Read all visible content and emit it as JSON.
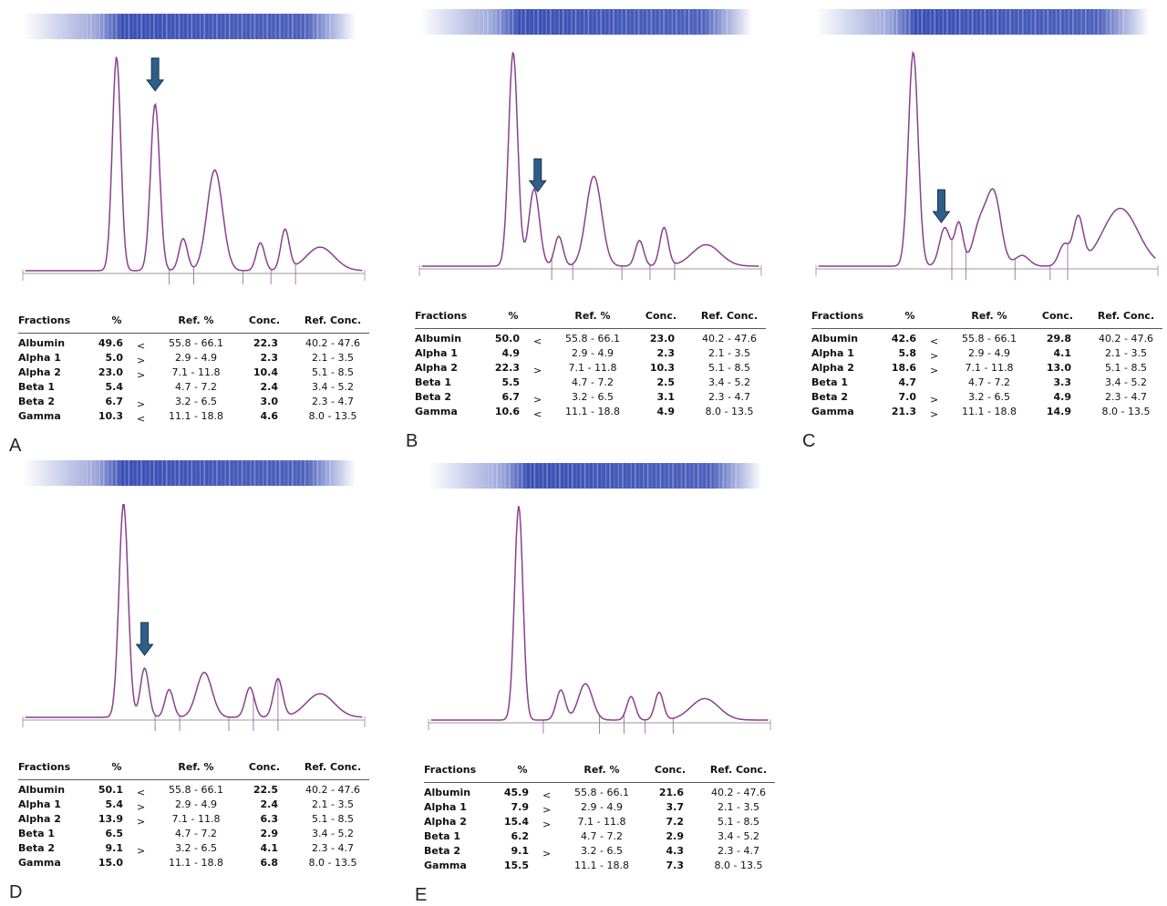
{
  "panels": [
    {
      "label": "A",
      "header": [
        "Fractions",
        "%",
        "Ref. %",
        "Conc.",
        "Ref. Conc."
      ],
      "rows": [
        {
          "name": "Albumin",
          "pct": "49.6",
          "flag": "<",
          "ref": "55.8 - 66.1",
          "conc": "22.3",
          "ref_conc": "40.2 - 47.6"
        },
        {
          "name": "Alpha 1",
          "pct": "5.0",
          "flag": ">",
          "ref": "2.9 - 4.9",
          "conc": "2.3",
          "ref_conc": "2.1 - 3.5"
        },
        {
          "name": "Alpha 2",
          "pct": "23.0",
          "flag": ">",
          "ref": "7.1 - 11.8",
          "conc": "10.4",
          "ref_conc": "5.1 - 8.5"
        },
        {
          "name": "Beta 1",
          "pct": "5.4",
          "ref": "4.7 - 7.2",
          "conc": "2.4",
          "ref_conc": "3.4 - 5.2"
        },
        {
          "name": "Beta 2",
          "pct": "6.7",
          "flag": ">",
          "ref": "3.2 - 6.5",
          "conc": "3.0",
          "ref_conc": "2.3 - 4.7"
        },
        {
          "name": "Gamma",
          "pct": "10.3",
          "flag": "<",
          "ref": "11.1 - 18.8",
          "conc": "4.6",
          "ref_conc": "8.0 - 13.5"
        }
      ]
    },
    {
      "label": "B",
      "header": [
        "Fractions",
        "%",
        "Ref. %",
        "Conc.",
        "Ref. Conc."
      ],
      "rows": [
        {
          "name": "Albumin",
          "pct": "50.0",
          "flag": "<",
          "ref": "55.8 - 66.1",
          "conc": "23.0",
          "ref_conc": "40.2 - 47.6"
        },
        {
          "name": "Alpha 1",
          "pct": "4.9",
          "ref": "2.9 - 4.9",
          "conc": "2.3",
          "ref_conc": "2.1 - 3.5"
        },
        {
          "name": "Alpha 2",
          "pct": "22.3",
          "flag": ">",
          "ref": "7.1 - 11.8",
          "conc": "10.3",
          "ref_conc": "5.1 - 8.5"
        },
        {
          "name": "Beta 1",
          "pct": "5.5",
          "ref": "4.7 - 7.2",
          "conc": "2.5",
          "ref_conc": "3.4 - 5.2"
        },
        {
          "name": "Beta 2",
          "pct": "6.7",
          "flag": ">",
          "ref": "3.2 - 6.5",
          "conc": "3.1",
          "ref_conc": "2.3 - 4.7"
        },
        {
          "name": "Gamma",
          "pct": "10.6",
          "flag": "<",
          "ref": "11.1 - 18.8",
          "conc": "4.9",
          "ref_conc": "8.0 - 13.5"
        }
      ]
    },
    {
      "label": "C",
      "header": [
        "Fractions",
        "%",
        "Ref. %",
        "Conc.",
        "Ref. Conc."
      ],
      "rows": [
        {
          "name": "Albumin",
          "pct": "42.6",
          "flag": "<",
          "ref": "55.8 - 66.1",
          "conc": "29.8",
          "ref_conc": "40.2 - 47.6"
        },
        {
          "name": "Alpha 1",
          "pct": "5.8",
          "flag": ">",
          "ref": "2.9 - 4.9",
          "conc": "4.1",
          "ref_conc": "2.1 - 3.5"
        },
        {
          "name": "Alpha 2",
          "pct": "18.6",
          "flag": ">",
          "ref": "7.1 - 11.8",
          "conc": "13.0",
          "ref_conc": "5.1 - 8.5"
        },
        {
          "name": "Beta 1",
          "pct": "4.7",
          "ref": "4.7 - 7.2",
          "conc": "3.3",
          "ref_conc": "3.4 - 5.2"
        },
        {
          "name": "Beta 2",
          "pct": "7.0",
          "flag": ">",
          "ref": "3.2 - 6.5",
          "conc": "4.9",
          "ref_conc": "2.3 - 4.7"
        },
        {
          "name": "Gamma",
          "pct": "21.3",
          "flag": ">",
          "ref": "11.1 - 18.8",
          "conc": "14.9",
          "ref_conc": "8.0 - 13.5"
        }
      ]
    },
    {
      "label": "D",
      "header": [
        "Fractions",
        "%",
        "Ref. %",
        "Conc.",
        "Ref. Conc."
      ],
      "rows": [
        {
          "name": "Albumin",
          "pct": "50.1",
          "flag": "<",
          "ref": "55.8 - 66.1",
          "conc": "22.5",
          "ref_conc": "40.2 - 47.6"
        },
        {
          "name": "Alpha 1",
          "pct": "5.4",
          "flag": ">",
          "ref": "2.9 - 4.9",
          "conc": "2.4",
          "ref_conc": "2.1 - 3.5"
        },
        {
          "name": "Alpha 2",
          "pct": "13.9",
          "flag": ">",
          "ref": "7.1 - 11.8",
          "conc": "6.3",
          "ref_conc": "5.1 - 8.5"
        },
        {
          "name": "Beta 1",
          "pct": "6.5",
          "ref": "4.7 - 7.2",
          "conc": "2.9",
          "ref_conc": "3.4 - 5.2"
        },
        {
          "name": "Beta 2",
          "pct": "9.1",
          "flag": ">",
          "ref": "3.2 - 6.5",
          "conc": "4.1",
          "ref_conc": "2.3 - 4.7"
        },
        {
          "name": "Gamma",
          "pct": "15.0",
          "ref": "11.1 - 18.8",
          "conc": "6.8",
          "ref_conc": "8.0 - 13.5"
        }
      ]
    },
    {
      "label": "E",
      "header": [
        "Fractions",
        "%",
        "Ref. %",
        "Conc.",
        "Ref. Conc."
      ],
      "rows": [
        {
          "name": "Albumin",
          "pct": "45.9",
          "flag": "<",
          "ref": "55.8 - 66.1",
          "conc": "21.6",
          "ref_conc": "40.2 - 47.6"
        },
        {
          "name": "Alpha 1",
          "pct": "7.9",
          "flag": ">",
          "ref": "2.9 - 4.9",
          "conc": "3.7",
          "ref_conc": "2.1 - 3.5"
        },
        {
          "name": "Alpha 2",
          "pct": "15.4",
          "flag": ">",
          "ref": "7.1 - 11.8",
          "conc": "7.2",
          "ref_conc": "5.1 - 8.5"
        },
        {
          "name": "Beta 1",
          "pct": "6.2",
          "ref": "4.7 - 7.2",
          "conc": "2.9",
          "ref_conc": "3.4 - 5.2"
        },
        {
          "name": "Beta 2",
          "pct": "9.1",
          "flag": ">",
          "ref": "3.2 - 6.5",
          "conc": "4.3",
          "ref_conc": "2.3 - 4.7"
        },
        {
          "name": "Gamma",
          "pct": "15.5",
          "ref": "11.1 - 18.8",
          "conc": "7.3",
          "ref_conc": "8.0 - 13.5"
        }
      ]
    }
  ]
}
